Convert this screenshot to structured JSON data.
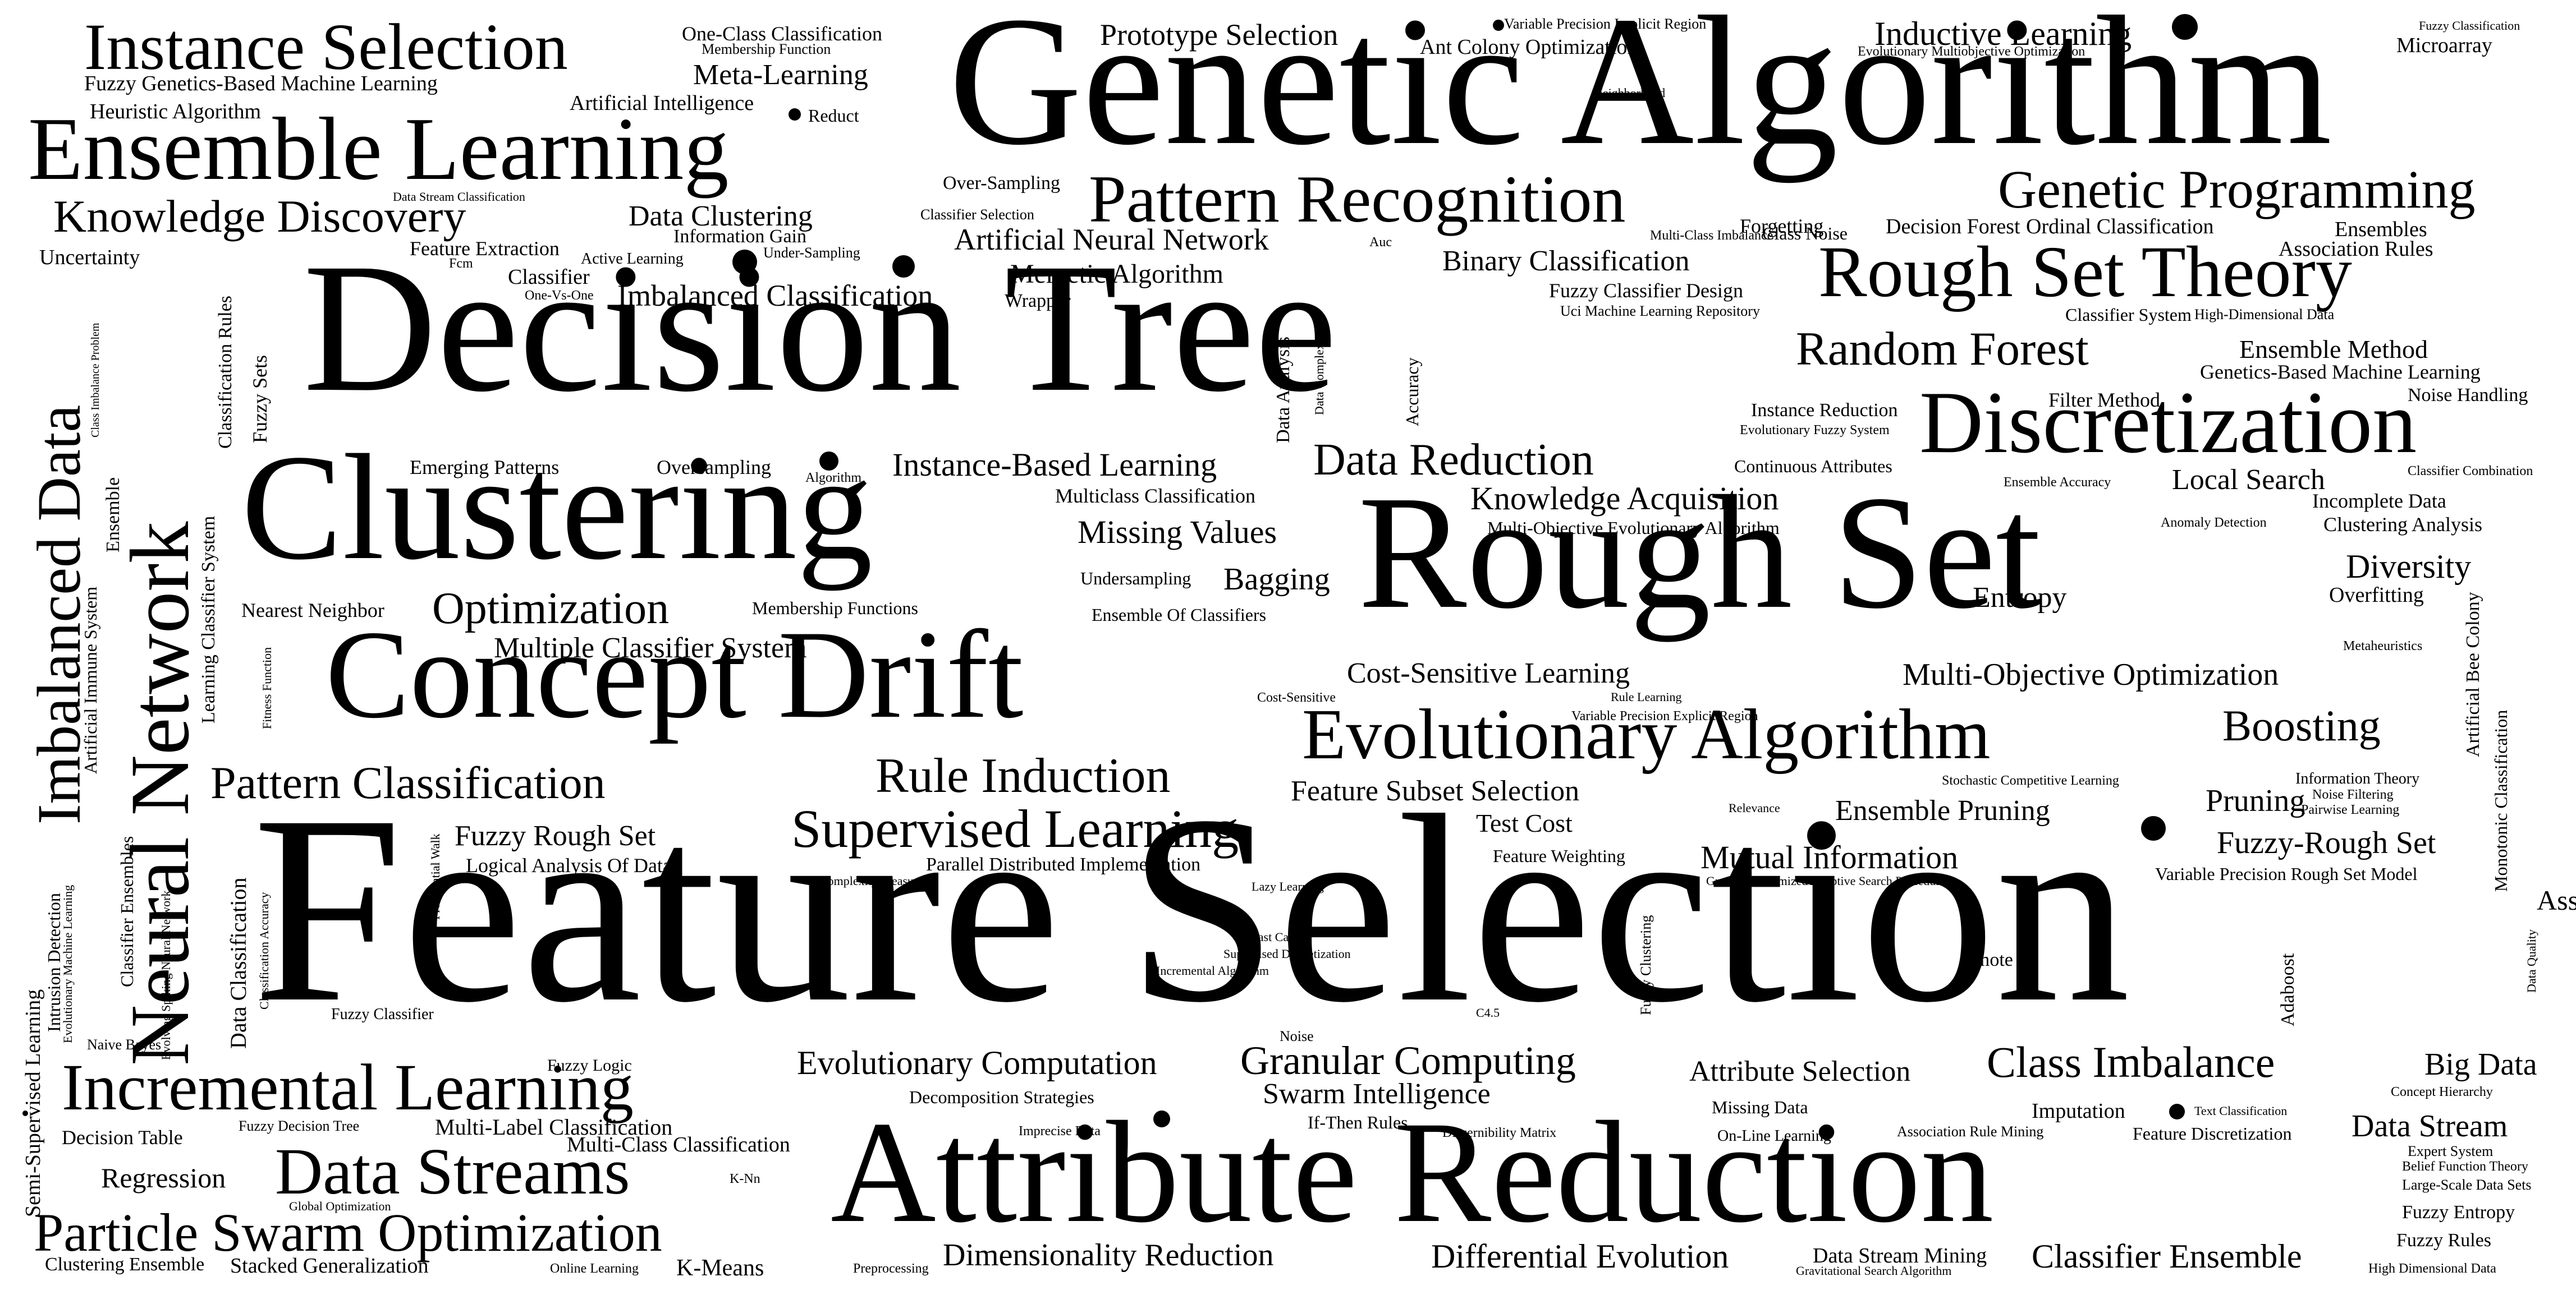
{
  "words": [
    {
      "text": "Feature Selection"
    },
    {
      "text": "Genetic Algorithm"
    },
    {
      "text": "Decision Tree"
    },
    {
      "text": "Rough Set"
    },
    {
      "text": "Attribute Reduction"
    },
    {
      "text": "Clustering"
    },
    {
      "text": "Concept Drift"
    },
    {
      "text": "Ensemble Learning"
    },
    {
      "text": "Instance Selection"
    },
    {
      "text": "Evolutionary Algorithm"
    },
    {
      "text": "Discretization"
    },
    {
      "text": "Rough Set Theory"
    },
    {
      "text": "Neural Network"
    },
    {
      "text": "Imbalanced Data"
    },
    {
      "text": "Incremental Learning"
    },
    {
      "text": "Data Streams"
    },
    {
      "text": "Particle Swarm Optimization"
    },
    {
      "text": "Pattern Recognition"
    },
    {
      "text": "Genetic Programming"
    },
    {
      "text": "Knowledge Discovery"
    },
    {
      "text": "Pattern Classification"
    },
    {
      "text": "Rule Induction"
    },
    {
      "text": "Supervised Learning"
    },
    {
      "text": "Random Forest"
    },
    {
      "text": "Data Reduction"
    },
    {
      "text": "Optimization"
    },
    {
      "text": "Granular Computing"
    },
    {
      "text": "Class Imbalance"
    },
    {
      "text": "Boosting"
    },
    {
      "text": "Inductive Learning"
    },
    {
      "text": "Prototype Selection"
    },
    {
      "text": "Meta-Learning"
    },
    {
      "text": "Data Clustering"
    },
    {
      "text": "Artificial Neural Network"
    },
    {
      "text": "Memetic Algorithm"
    },
    {
      "text": "Imbalanced Classification"
    },
    {
      "text": "Binary Classification"
    },
    {
      "text": "Instance-Based Learning"
    },
    {
      "text": "Missing Values"
    },
    {
      "text": "Bagging"
    },
    {
      "text": "Knowledge Acquisition"
    },
    {
      "text": "Local Search"
    },
    {
      "text": "Diversity"
    },
    {
      "text": "Multi-Objective Optimization"
    },
    {
      "text": "Cost-Sensitive Learning"
    },
    {
      "text": "Multiple Classifier System"
    },
    {
      "text": "Feature Subset Selection"
    },
    {
      "text": "Ensemble Pruning"
    },
    {
      "text": "Pruning"
    },
    {
      "text": "Fuzzy-Rough Set"
    },
    {
      "text": "Mutual Information"
    },
    {
      "text": "Fuzzy Rough Set"
    },
    {
      "text": "Evolutionary Computation"
    },
    {
      "text": "Attribute Selection"
    },
    {
      "text": "Swarm Intelligence"
    },
    {
      "text": "Dimensionality Reduction"
    },
    {
      "text": "Differential Evolution"
    },
    {
      "text": "Classifier Ensemble"
    },
    {
      "text": "Data Stream"
    },
    {
      "text": "Big Data"
    },
    {
      "text": "Regression"
    },
    {
      "text": "Ensemble Method"
    },
    {
      "text": "Entropy"
    },
    {
      "text": "Associative Classification"
    },
    {
      "text": "Test Cost"
    },
    {
      "text": "K-Means"
    },
    {
      "text": "One-Class Classification"
    },
    {
      "text": "Membership Function"
    },
    {
      "text": "Fuzzy Genetics-Based Machine Learning"
    },
    {
      "text": "Heuristic Algorithm"
    },
    {
      "text": "Artificial Intelligence"
    },
    {
      "text": "Reduct"
    },
    {
      "text": "Ant Colony Optimization"
    },
    {
      "text": "Variable Precision Implicit Region"
    },
    {
      "text": "Neighborhood"
    },
    {
      "text": "Evolutionary Multiobjective Optimization"
    },
    {
      "text": "Fuzzy Classification"
    },
    {
      "text": "Microarray"
    },
    {
      "text": "Over-Sampling"
    },
    {
      "text": "Data Stream Classification"
    },
    {
      "text": "Classifier Selection"
    },
    {
      "text": "Information Gain"
    },
    {
      "text": "Under-Sampling"
    },
    {
      "text": "Feature Extraction"
    },
    {
      "text": "Active Learning"
    },
    {
      "text": "Fcm"
    },
    {
      "text": "Uncertainty"
    },
    {
      "text": "Classifier"
    },
    {
      "text": "One-Vs-One"
    },
    {
      "text": "Wrapper"
    },
    {
      "text": "Forgetting"
    },
    {
      "text": "Multi-Class Imbalance"
    },
    {
      "text": "Class Noise"
    },
    {
      "text": "Auc"
    },
    {
      "text": "Decision Forest"
    },
    {
      "text": "Ordinal Classification"
    },
    {
      "text": "Ensembles"
    },
    {
      "text": "Association Rules"
    },
    {
      "text": "Fuzzy Classifier Design"
    },
    {
      "text": "Uci Machine Learning Repository"
    },
    {
      "text": "Classifier System"
    },
    {
      "text": "High-Dimensional Data"
    },
    {
      "text": "Genetics-Based Machine Learning"
    },
    {
      "text": "Noise Handling"
    },
    {
      "text": "Filter Method"
    },
    {
      "text": "Instance Reduction"
    },
    {
      "text": "Evolutionary Fuzzy System"
    },
    {
      "text": "Continuous Attributes"
    },
    {
      "text": "Ensemble Accuracy"
    },
    {
      "text": "Classifier Combination"
    },
    {
      "text": "Incomplete Data"
    },
    {
      "text": "Anomaly Detection"
    },
    {
      "text": "Clustering Analysis"
    },
    {
      "text": "Multi-Objective Evolutionary Algorithm"
    },
    {
      "text": "Overfitting"
    },
    {
      "text": "Metaheuristics"
    },
    {
      "text": "Emerging Patterns"
    },
    {
      "text": "Oversampling"
    },
    {
      "text": "Algorithm"
    },
    {
      "text": "Multiclass Classification"
    },
    {
      "text": "Undersampling"
    },
    {
      "text": "Nearest Neighbor"
    },
    {
      "text": "Membership Functions"
    },
    {
      "text": "Ensemble Of Classifiers"
    },
    {
      "text": "Cost-Sensitive"
    },
    {
      "text": "Rule Learning"
    },
    {
      "text": "Variable Precision Explicit Region"
    },
    {
      "text": "Information Theory"
    },
    {
      "text": "Stochastic Competitive Learning"
    },
    {
      "text": "Noise Filtering"
    },
    {
      "text": "Pairwise Learning"
    },
    {
      "text": "Relevance"
    },
    {
      "text": "Greedy Randomized Adaptive Search Procedure"
    },
    {
      "text": "Variable Precision Rough Set Model"
    },
    {
      "text": "Feature Weighting"
    },
    {
      "text": "Logical Analysis Of Data"
    },
    {
      "text": "Parallel Distributed Implementation"
    },
    {
      "text": "Complexity Measures"
    },
    {
      "text": "Lazy Learning"
    },
    {
      "text": "Breast Cancer"
    },
    {
      "text": "Supervised Discretization"
    },
    {
      "text": "Incremental Algorithm"
    },
    {
      "text": "Smote"
    },
    {
      "text": "C4.5"
    },
    {
      "text": "Fuzzy Classifier"
    },
    {
      "text": "Noise"
    },
    {
      "text": "Fuzzy Logic"
    },
    {
      "text": "Decomposition Strategies"
    },
    {
      "text": "Imprecise Data"
    },
    {
      "text": "If-Then Rules"
    },
    {
      "text": "Discernibility Matrix"
    },
    {
      "text": "Missing Data"
    },
    {
      "text": "On-Line Learning"
    },
    {
      "text": "Association Rule Mining"
    },
    {
      "text": "Imputation"
    },
    {
      "text": "Text Classification"
    },
    {
      "text": "Feature Discretization"
    },
    {
      "text": "Concept Hierarchy"
    },
    {
      "text": "Expert System"
    },
    {
      "text": "Belief Function Theory"
    },
    {
      "text": "Large-Scale Data Sets"
    },
    {
      "text": "Fuzzy Entropy"
    },
    {
      "text": "Fuzzy Rules"
    },
    {
      "text": "High Dimensional Data"
    },
    {
      "text": "Data Stream Mining"
    },
    {
      "text": "Gravitational Search Algorithm"
    },
    {
      "text": "Online Learning"
    },
    {
      "text": "Preprocessing"
    },
    {
      "text": "Clustering Ensemble"
    },
    {
      "text": "Stacked Generalization"
    },
    {
      "text": "Global Optimization"
    },
    {
      "text": "K-Nn"
    },
    {
      "text": "Multi-Label Classification"
    },
    {
      "text": "Multi-Class Classification"
    },
    {
      "text": "Fuzzy Decision Tree"
    },
    {
      "text": "Decision Table"
    },
    {
      "text": "Naive Bayes"
    },
    {
      "text": "Class Imbalance Problem"
    },
    {
      "text": "Ensemble"
    },
    {
      "text": "Learning Classifier System"
    },
    {
      "text": "Classification Rules"
    },
    {
      "text": "Fuzzy Sets"
    },
    {
      "text": "Fitness Function"
    },
    {
      "text": "Artificial Immune System"
    },
    {
      "text": "Semi-Supervised Learning"
    },
    {
      "text": "Intrusion Detection"
    },
    {
      "text": "Evolutionary Machine Learning"
    },
    {
      "text": "Classifier Ensembles"
    },
    {
      "text": "Evolving Spiking Neural Network"
    },
    {
      "text": "Data Classification"
    },
    {
      "text": "Classification Accuracy"
    },
    {
      "text": "Preferential Walk"
    },
    {
      "text": "Data Analysis"
    },
    {
      "text": "Data Complexity"
    },
    {
      "text": "Accuracy"
    },
    {
      "text": "Fuzzy Clustering"
    },
    {
      "text": "Artificial Bee Colony"
    },
    {
      "text": "Monotonic Classification"
    },
    {
      "text": "Adaboost"
    },
    {
      "text": "Data Quality"
    }
  ]
}
